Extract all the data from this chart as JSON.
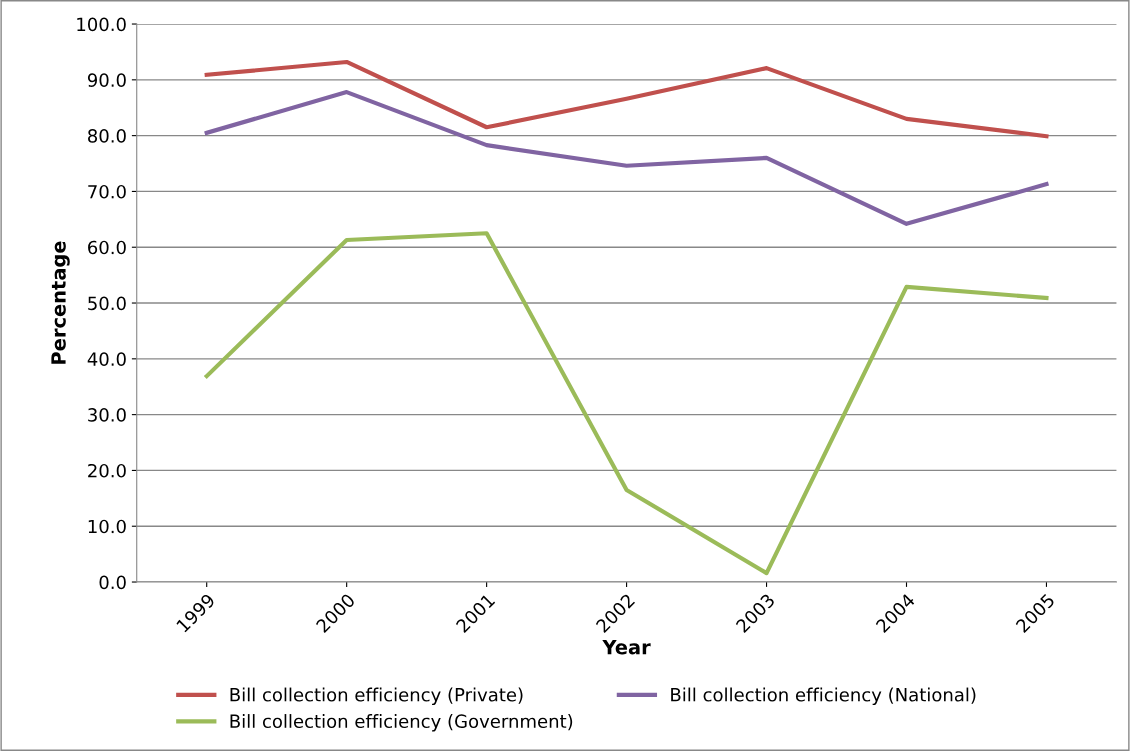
{
  "chart_data": {
    "type": "line",
    "xlabel": "Year",
    "ylabel": "Percentage",
    "categories": [
      "1999",
      "2000",
      "2001",
      "2002",
      "2003",
      "2004",
      "2005"
    ],
    "series": [
      {
        "name": "Bill collection efficiency (Private)",
        "color": "#c0504d",
        "values": [
          90.9,
          93.2,
          81.5,
          86.6,
          92.1,
          83.0,
          79.9
        ]
      },
      {
        "name": "Bill collection efficiency (Government)",
        "color": "#9bbb59",
        "values": [
          36.9,
          61.3,
          62.5,
          16.5,
          1.6,
          52.9,
          50.9
        ]
      },
      {
        "name": "Bill collection efficiency (National)",
        "color": "#8064a2",
        "values": [
          80.5,
          87.8,
          78.3,
          74.6,
          76.0,
          64.2,
          71.3
        ]
      }
    ],
    "ylim": [
      0,
      100
    ],
    "yticks": [
      {
        "value": 0,
        "label": "0.0"
      },
      {
        "value": 10,
        "label": "10.0"
      },
      {
        "value": 20,
        "label": "20.0"
      },
      {
        "value": 30,
        "label": "30.0"
      },
      {
        "value": 40,
        "label": "40.0"
      },
      {
        "value": 50,
        "label": "50.0"
      },
      {
        "value": 60,
        "label": "60.0"
      },
      {
        "value": 70,
        "label": "70.0"
      },
      {
        "value": 80,
        "label": "80.0"
      },
      {
        "value": 90,
        "label": "90.0"
      },
      {
        "value": 100,
        "label": "100.0"
      }
    ],
    "grid": "y",
    "legend": "bottom",
    "marker": "none",
    "line_style": "solid"
  }
}
